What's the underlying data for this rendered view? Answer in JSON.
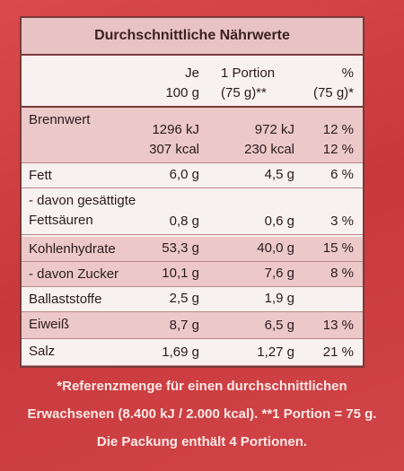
{
  "title": "Durchschnittliche Nährwerte",
  "table": {
    "header": [
      [
        "Je",
        "100 g"
      ],
      [
        "1 Portion",
        "(75 g)**"
      ],
      [
        "%",
        "(75 g)*"
      ]
    ],
    "rows": [
      [
        [
          "Brennwert"
        ],
        [
          "1296 kJ",
          "307 kcal"
        ],
        [
          "972 kJ",
          "230 kcal"
        ],
        [
          "12 %",
          "12 %"
        ]
      ],
      [
        [
          "Fett"
        ],
        [
          "6,0 g"
        ],
        [
          "4,5 g"
        ],
        [
          "6 %"
        ]
      ],
      [
        [
          "- davon gesättigte",
          "Fettsäuren"
        ],
        [
          "0,8 g"
        ],
        [
          "0,6 g"
        ],
        [
          "3 %"
        ]
      ],
      [
        [
          "Kohlenhydrate"
        ],
        [
          "53,3 g"
        ],
        [
          "40,0 g"
        ],
        [
          "15 %"
        ]
      ],
      [
        [
          "- davon Zucker"
        ],
        [
          "10,1 g"
        ],
        [
          "7,6 g"
        ],
        [
          "8 %"
        ]
      ],
      [
        [
          "Ballaststoffe"
        ],
        [
          "2,5 g"
        ],
        [
          "1,9 g"
        ],
        []
      ],
      [
        [
          "Eiweiß"
        ],
        [
          "8,7 g"
        ],
        [
          "6,5 g"
        ],
        [
          "13 %"
        ]
      ],
      [
        [
          "Salz"
        ],
        [
          "1,69 g"
        ],
        [
          "1,27 g"
        ],
        [
          "21 %"
        ]
      ]
    ]
  },
  "footnote": [
    "*Referenzmenge für einen durchschnittlichen",
    "Erwachsenen (8.400 kJ / 2.000 kcal). **1 Portion = 75 g.",
    "Die Packung enthält 4 Portionen."
  ]
}
